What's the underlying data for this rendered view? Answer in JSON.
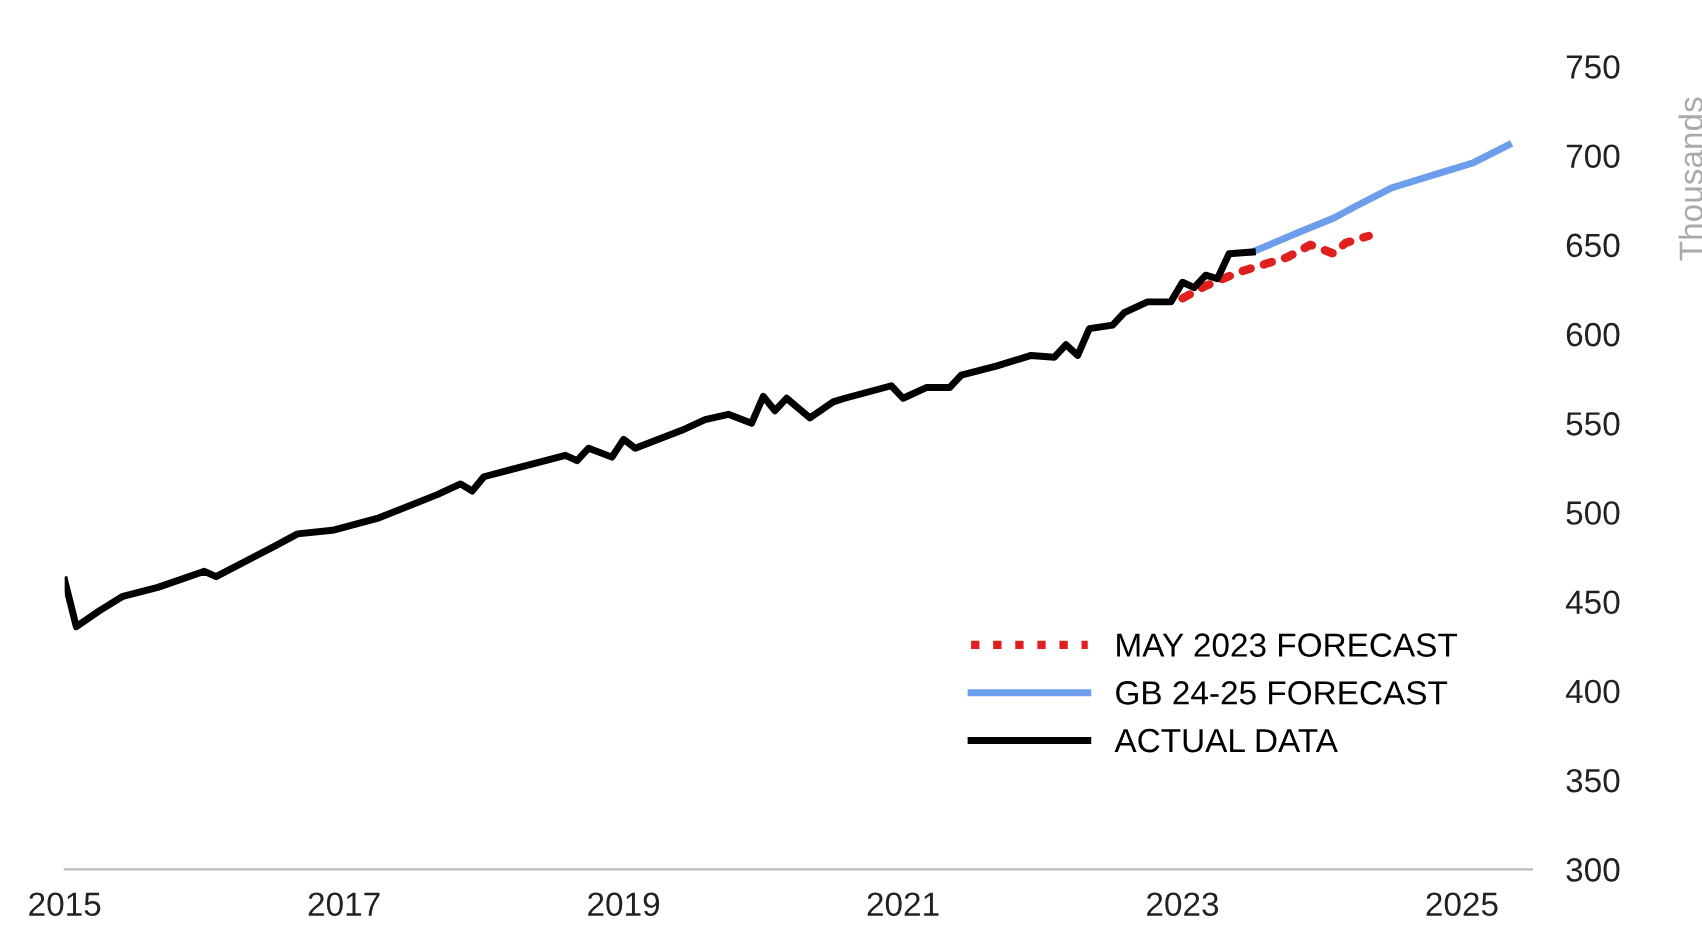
{
  "chart_data": {
    "type": "line",
    "ylabel": "Thousands",
    "xlim": [
      "2015-01",
      "2025-07"
    ],
    "ylim": [
      300,
      750
    ],
    "xticks": [
      {
        "value": "2015",
        "label": "2015"
      },
      {
        "value": "2017",
        "label": "2017"
      },
      {
        "value": "2019",
        "label": "2019"
      },
      {
        "value": "2021",
        "label": "2021"
      },
      {
        "value": "2023",
        "label": "2023"
      },
      {
        "value": "2025",
        "label": "2025"
      }
    ],
    "yticks": [
      300,
      350,
      400,
      450,
      500,
      550,
      600,
      650,
      700,
      750
    ],
    "grid": false,
    "legend": "bottom right",
    "series": [
      {
        "name": "MAY 2023 FORECAST",
        "color": "#e0201e",
        "line_style": "dotted",
        "x": [
          "2023-01",
          "2023-03",
          "2023-06",
          "2023-10",
          "2023-12",
          "2024-02",
          "2024-03",
          "2024-05"
        ],
        "values": [
          620,
          627,
          635,
          643,
          650,
          645,
          651,
          655
        ]
      },
      {
        "name": "GB 24-25 FORECAST",
        "color": "#6d9eeb",
        "line_style": "solid",
        "x": [
          "2023-07",
          "2023-11",
          "2024-02",
          "2024-04",
          "2024-07",
          "2024-11",
          "2025-02",
          "2025-05"
        ],
        "values": [
          646,
          657,
          665,
          672,
          682,
          690,
          696,
          706
        ]
      },
      {
        "name": "ACTUAL DATA",
        "color": "#000000",
        "line_style": "solid",
        "x": [
          "2015-01",
          "2015-02",
          "2015-04",
          "2015-06",
          "2015-09",
          "2016-01",
          "2016-02",
          "2016-07",
          "2016-09",
          "2016-12",
          "2017-04",
          "2017-09",
          "2017-11",
          "2017-12",
          "2018-01",
          "2018-08",
          "2018-09",
          "2018-10",
          "2018-12",
          "2019-01",
          "2019-02",
          "2019-06",
          "2019-08",
          "2019-10",
          "2019-12",
          "2020-01",
          "2020-02",
          "2020-03",
          "2020-05",
          "2020-07",
          "2020-08",
          "2020-12",
          "2021-01",
          "2021-03",
          "2021-05",
          "2021-06",
          "2021-09",
          "2021-12",
          "2022-02",
          "2022-03",
          "2022-04",
          "2022-05",
          "2022-07",
          "2022-08",
          "2022-10",
          "2022-12",
          "2023-01",
          "2023-02",
          "2023-03",
          "2023-04",
          "2023-05",
          "2023-07"
        ],
        "values": [
          462,
          436,
          445,
          453,
          458,
          467,
          464,
          481,
          488,
          490,
          497,
          510,
          516,
          512,
          520,
          532,
          529,
          536,
          531,
          541,
          536,
          546,
          552,
          555,
          550,
          565,
          557,
          564,
          553,
          562,
          564,
          571,
          564,
          570,
          570,
          577,
          582,
          588,
          587,
          594,
          588,
          603,
          605,
          612,
          618,
          618,
          629,
          626,
          633,
          631,
          645,
          646
        ]
      }
    ]
  }
}
